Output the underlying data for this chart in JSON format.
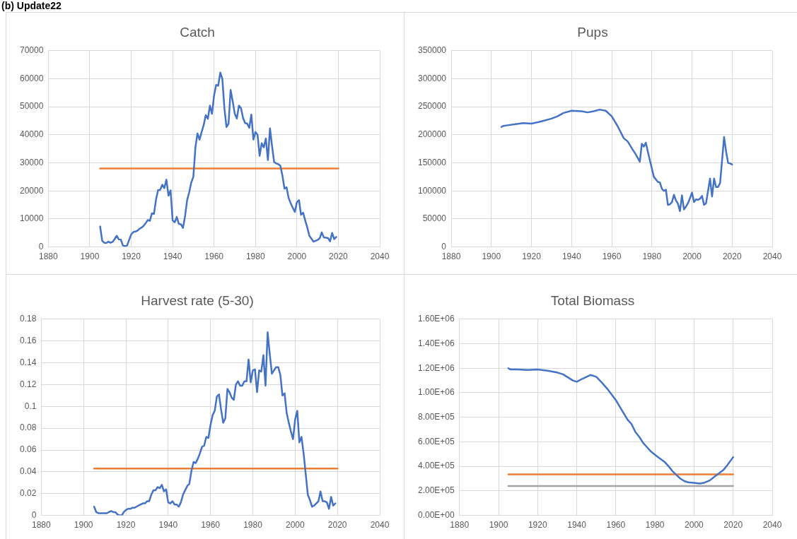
{
  "chart_data": [
    {
      "type": "line",
      "title": "Catch",
      "annotations": [
        "(b) Update22"
      ],
      "grid": true,
      "xlim": [
        1880,
        2040
      ],
      "xticks": [
        1880,
        1900,
        1920,
        1940,
        1960,
        1980,
        2000,
        2020,
        2040
      ],
      "ylim": [
        0,
        70000
      ],
      "yticks": [
        0,
        10000,
        20000,
        30000,
        40000,
        50000,
        60000,
        70000
      ],
      "series": [
        {
          "color": "#4472c4",
          "x": [
            1905,
            1906,
            1907,
            1908,
            1909,
            1910,
            1911,
            1912,
            1913,
            1914,
            1915,
            1916,
            1917,
            1918,
            1919,
            1920,
            1921,
            1922,
            1923,
            1924,
            1925,
            1926,
            1927,
            1928,
            1929,
            1930,
            1931,
            1932,
            1933,
            1934,
            1935,
            1936,
            1937,
            1938,
            1939,
            1940,
            1941,
            1942,
            1943,
            1944,
            1945,
            1946,
            1947,
            1948,
            1949,
            1950,
            1951,
            1952,
            1953,
            1954,
            1955,
            1956,
            1957,
            1958,
            1959,
            1960,
            1961,
            1962,
            1963,
            1964,
            1965,
            1966,
            1967,
            1968,
            1969,
            1970,
            1971,
            1972,
            1973,
            1974,
            1975,
            1976,
            1977,
            1978,
            1979,
            1980,
            1981,
            1982,
            1983,
            1984,
            1985,
            1986,
            1987,
            1988,
            1989,
            1990,
            1991,
            1992,
            1993,
            1994,
            1995,
            1996,
            1997,
            1998,
            1999,
            2000,
            2001,
            2002,
            2003,
            2004,
            2005,
            2006,
            2007,
            2008,
            2009,
            2010,
            2011,
            2012,
            2013,
            2014,
            2015,
            2016,
            2017,
            2018,
            2019
          ],
          "values": [
            7300,
            2200,
            1500,
            1400,
            1900,
            1500,
            1800,
            2800,
            4000,
            2700,
            2600,
            500,
            300,
            500,
            2500,
            4500,
            5300,
            5500,
            5800,
            6500,
            6900,
            7500,
            8500,
            9600,
            9300,
            12000,
            11800,
            17000,
            20300,
            20400,
            22200,
            21000,
            24000,
            18300,
            20200,
            9500,
            8800,
            10700,
            8200,
            8100,
            6800,
            11000,
            16700,
            19500,
            23000,
            25000,
            35500,
            40500,
            38300,
            41000,
            43500,
            47000,
            45700,
            50400,
            47500,
            54000,
            57800,
            57500,
            62200,
            60000,
            49500,
            42800,
            44000,
            56000,
            52000,
            47500,
            45800,
            50400,
            49500,
            46000,
            44200,
            44000,
            42500,
            47200,
            38300,
            41000,
            40000,
            32500,
            37000,
            35500,
            38700,
            31000,
            42300,
            36000,
            30300,
            29800,
            29500,
            29000,
            25500,
            20800,
            21300,
            17500,
            15600,
            14000,
            12500,
            16000,
            16700,
            11500,
            12200,
            9500,
            7000,
            4000,
            3000,
            1900,
            2200,
            2500,
            3100,
            5200,
            3400,
            3300,
            3200,
            2000,
            5000,
            2800,
            3600
          ]
        },
        {
          "color": "#ed7d31",
          "x": [
            1905,
            2020
          ],
          "values": [
            28000,
            28000
          ]
        }
      ]
    },
    {
      "type": "line",
      "title": "Pups",
      "grid": true,
      "xlim": [
        1880,
        2040
      ],
      "xticks": [
        1880,
        1900,
        1920,
        1940,
        1960,
        1980,
        2000,
        2020,
        2040
      ],
      "ylim": [
        0,
        350000
      ],
      "yticks": [
        0,
        50000,
        100000,
        150000,
        200000,
        250000,
        300000,
        350000
      ],
      "series": [
        {
          "color": "#4472c4",
          "x": [
            1905,
            1906,
            1908,
            1912,
            1916,
            1920,
            1925,
            1930,
            1933,
            1936,
            1940,
            1945,
            1948,
            1951,
            1954,
            1957,
            1960,
            1963,
            1966,
            1968,
            1970,
            1972,
            1974,
            1975,
            1976,
            1977,
            1978,
            1980,
            1981,
            1983,
            1984,
            1985,
            1986,
            1987,
            1988,
            1989,
            1990,
            1991,
            1992,
            1993,
            1994,
            1995,
            1996,
            1997,
            1998,
            1999,
            2000,
            2001,
            2002,
            2003,
            2004,
            2005,
            2006,
            2007,
            2008,
            2009,
            2010,
            2011,
            2012,
            2013,
            2014,
            2015,
            2016,
            2017,
            2018,
            2019,
            2020
          ],
          "values": [
            214000,
            216000,
            217000,
            219000,
            221000,
            220000,
            224000,
            229000,
            233000,
            239000,
            243000,
            242000,
            240000,
            242000,
            245000,
            243000,
            233000,
            215000,
            194000,
            188000,
            176000,
            165000,
            152000,
            184000,
            179000,
            186000,
            170000,
            140000,
            125000,
            116000,
            115000,
            104000,
            100000,
            102000,
            75000,
            76000,
            80000,
            93000,
            83000,
            77000,
            64000,
            92000,
            67000,
            72000,
            78000,
            87000,
            97000,
            80000,
            85000,
            84000,
            86000,
            91000,
            75000,
            78000,
            100000,
            122000,
            90000,
            122000,
            107000,
            107000,
            114000,
            155000,
            196000,
            170000,
            150000,
            149000,
            147000
          ]
        }
      ]
    },
    {
      "type": "line",
      "title": "Harvest rate (5-30)",
      "grid": true,
      "xlim": [
        1880,
        2040
      ],
      "xticks": [
        1880,
        1900,
        1920,
        1940,
        1960,
        1980,
        2000,
        2020,
        2040
      ],
      "ylim": [
        0,
        0.18
      ],
      "yticks": [
        0,
        0.02,
        0.04,
        0.06,
        0.08,
        0.1,
        0.12,
        0.14,
        0.16,
        0.18
      ],
      "series": [
        {
          "color": "#4472c4",
          "x": [
            1905,
            1906,
            1907,
            1908,
            1909,
            1910,
            1911,
            1912,
            1913,
            1914,
            1915,
            1916,
            1917,
            1918,
            1919,
            1920,
            1921,
            1922,
            1923,
            1924,
            1925,
            1926,
            1927,
            1928,
            1929,
            1930,
            1931,
            1932,
            1933,
            1934,
            1935,
            1936,
            1937,
            1938,
            1939,
            1940,
            1941,
            1942,
            1943,
            1944,
            1945,
            1946,
            1947,
            1948,
            1949,
            1950,
            1951,
            1952,
            1953,
            1954,
            1955,
            1956,
            1957,
            1958,
            1959,
            1960,
            1961,
            1962,
            1963,
            1964,
            1965,
            1966,
            1967,
            1968,
            1969,
            1970,
            1971,
            1972,
            1973,
            1974,
            1975,
            1976,
            1977,
            1978,
            1979,
            1980,
            1981,
            1982,
            1983,
            1984,
            1985,
            1986,
            1987,
            1988,
            1989,
            1990,
            1991,
            1992,
            1993,
            1994,
            1995,
            1996,
            1997,
            1998,
            1999,
            2000,
            2001,
            2002,
            2003,
            2004,
            2005,
            2006,
            2007,
            2008,
            2009,
            2010,
            2011,
            2012,
            2013,
            2014,
            2015,
            2016,
            2017,
            2018,
            2019
          ],
          "values": [
            0.008,
            0.003,
            0.002,
            0.002,
            0.002,
            0.002,
            0.002,
            0.003,
            0.004,
            0.003,
            0.003,
            0.001,
            0.0,
            0.0,
            0.003,
            0.005,
            0.006,
            0.006,
            0.007,
            0.007,
            0.008,
            0.009,
            0.01,
            0.011,
            0.011,
            0.013,
            0.013,
            0.019,
            0.023,
            0.023,
            0.026,
            0.025,
            0.028,
            0.022,
            0.024,
            0.012,
            0.011,
            0.013,
            0.01,
            0.01,
            0.008,
            0.012,
            0.019,
            0.023,
            0.027,
            0.029,
            0.041,
            0.049,
            0.048,
            0.052,
            0.057,
            0.063,
            0.064,
            0.072,
            0.071,
            0.083,
            0.092,
            0.096,
            0.109,
            0.111,
            0.097,
            0.085,
            0.089,
            0.116,
            0.113,
            0.108,
            0.106,
            0.12,
            0.123,
            0.119,
            0.119,
            0.123,
            0.123,
            0.143,
            0.122,
            0.133,
            0.134,
            0.113,
            0.133,
            0.132,
            0.147,
            0.119,
            0.168,
            0.148,
            0.13,
            0.133,
            0.136,
            0.136,
            0.129,
            0.11,
            0.112,
            0.094,
            0.085,
            0.077,
            0.07,
            0.088,
            0.096,
            0.067,
            0.072,
            0.057,
            0.038,
            0.019,
            0.014,
            0.008,
            0.009,
            0.011,
            0.013,
            0.022,
            0.013,
            0.013,
            0.012,
            0.006,
            0.017,
            0.009,
            0.011
          ]
        },
        {
          "color": "#ed7d31",
          "x": [
            1905,
            2020
          ],
          "values": [
            0.043,
            0.043
          ]
        }
      ]
    },
    {
      "type": "line",
      "title": "Total Biomass",
      "grid": true,
      "xlim": [
        1880,
        2040
      ],
      "xticks": [
        1880,
        1900,
        1920,
        1940,
        1960,
        1980,
        2000,
        2020,
        2040
      ],
      "ylim": [
        0,
        1600000
      ],
      "yticks": [
        {
          "value": 0,
          "label": "0.00E+00"
        },
        {
          "value": 200000,
          "label": "2.00E+05"
        },
        {
          "value": 400000,
          "label": "4.00E+05"
        },
        {
          "value": 600000,
          "label": "6.00E+05"
        },
        {
          "value": 800000,
          "label": "8.00E+05"
        },
        {
          "value": 1000000,
          "label": "1.00E+06"
        },
        {
          "value": 1200000,
          "label": "1.20E+06"
        },
        {
          "value": 1400000,
          "label": "1.40E+06"
        },
        {
          "value": 1600000,
          "label": "1.60E+06"
        }
      ],
      "series": [
        {
          "color": "#4472c4",
          "x": [
            1905,
            1906,
            1910,
            1915,
            1920,
            1925,
            1930,
            1933,
            1936,
            1938,
            1940,
            1943,
            1947,
            1950,
            1953,
            1956,
            1960,
            1963,
            1966,
            1968,
            1970,
            1972,
            1974,
            1976,
            1978,
            1980,
            1982,
            1985,
            1987,
            1989,
            1991,
            1993,
            1995,
            1997,
            2000,
            2003,
            2005,
            2008,
            2010,
            2012,
            2015,
            2017,
            2020
          ],
          "values": [
            1200000,
            1190000,
            1190000,
            1185000,
            1190000,
            1180000,
            1165000,
            1150000,
            1120000,
            1100000,
            1090000,
            1115000,
            1145000,
            1130000,
            1080000,
            1025000,
            940000,
            860000,
            780000,
            745000,
            680000,
            640000,
            590000,
            555000,
            520000,
            495000,
            470000,
            435000,
            400000,
            360000,
            330000,
            300000,
            280000,
            270000,
            265000,
            260000,
            265000,
            285000,
            310000,
            335000,
            370000,
            410000,
            475000
          ]
        },
        {
          "color": "#ed7d31",
          "x": [
            1905,
            2020
          ],
          "values": [
            335000,
            335000
          ]
        },
        {
          "color": "#a5a5a5",
          "x": [
            1905,
            2020
          ],
          "values": [
            240000,
            240000
          ]
        }
      ]
    }
  ]
}
